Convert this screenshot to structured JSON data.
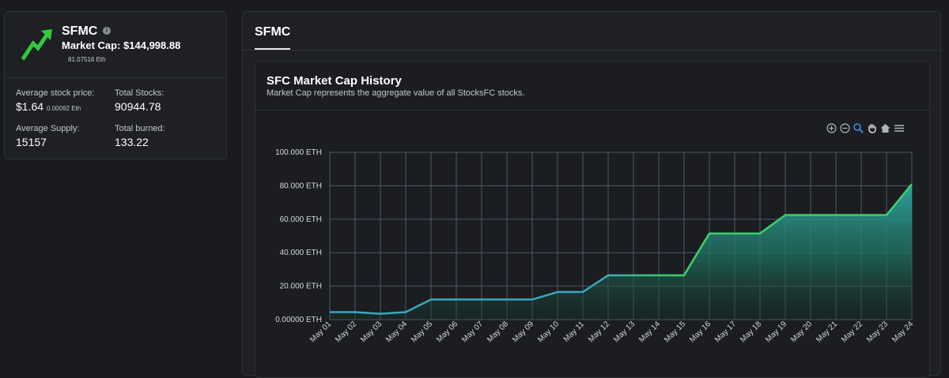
{
  "summary": {
    "symbol": "SFMC",
    "market_cap_label": "Market Cap:",
    "market_cap_value": "$144,998.88",
    "market_cap_eth": "81.07516 Eth",
    "stats": {
      "avg_price_label": "Average stock price:",
      "avg_price_value": "$1.64",
      "avg_price_eth": "0.00092 Eth",
      "total_stocks_label": "Total Stocks:",
      "total_stocks_value": "90944.78",
      "avg_supply_label": "Average Supply:",
      "avg_supply_value": "15157",
      "total_burned_label": "Total burned:",
      "total_burned_value": "133.22"
    }
  },
  "tabs": [
    {
      "label": "SFMC",
      "active": true
    }
  ],
  "chart_panel": {
    "title": "SFC Market Cap History",
    "subtitle": "Market Cap represents the aggregate value of all StocksFC stocks.",
    "toolbar": [
      "zoom-in-icon",
      "zoom-out-icon",
      "selection-zoom-icon",
      "pan-hand-icon",
      "reset-home-icon",
      "menu-icon"
    ]
  },
  "colors": {
    "line_start": "#3aa6c0",
    "line_end": "#3ecf6d",
    "toolbar_active": "#3b8fe0",
    "trend_icon": "#33c93e"
  },
  "chart_data": {
    "type": "area",
    "title": "",
    "xlabel": "",
    "ylabel": "",
    "categories": [
      "May 01",
      "May 02",
      "May 03",
      "May 04",
      "May 05",
      "May 06",
      "May 07",
      "May 08",
      "May 09",
      "May 10",
      "May 11",
      "May 12",
      "May 13",
      "May 14",
      "May 15",
      "May 16",
      "May 17",
      "May 18",
      "May 19",
      "May 20",
      "May 21",
      "May 22",
      "May 23",
      "May 24"
    ],
    "series": [
      {
        "values": [
          4.5,
          4.5,
          3.5,
          4.5,
          12,
          12,
          12,
          12,
          12,
          16.5,
          16.5,
          26.5,
          26.5,
          26.5,
          26.5,
          51.5,
          51.5,
          51.5,
          62.5,
          62.5,
          62.5,
          62.5,
          62.5,
          81
        ]
      }
    ],
    "ylim": [
      0,
      100
    ],
    "y_ticks": [
      0,
      20,
      40,
      60,
      80,
      100
    ],
    "y_tick_labels": [
      "0.00000 ETH",
      "20.000 ETH",
      "40.000 ETH",
      "60.000 ETH",
      "80.000 ETH",
      "100.000 ETH"
    ],
    "grid": true,
    "legend": "none"
  }
}
